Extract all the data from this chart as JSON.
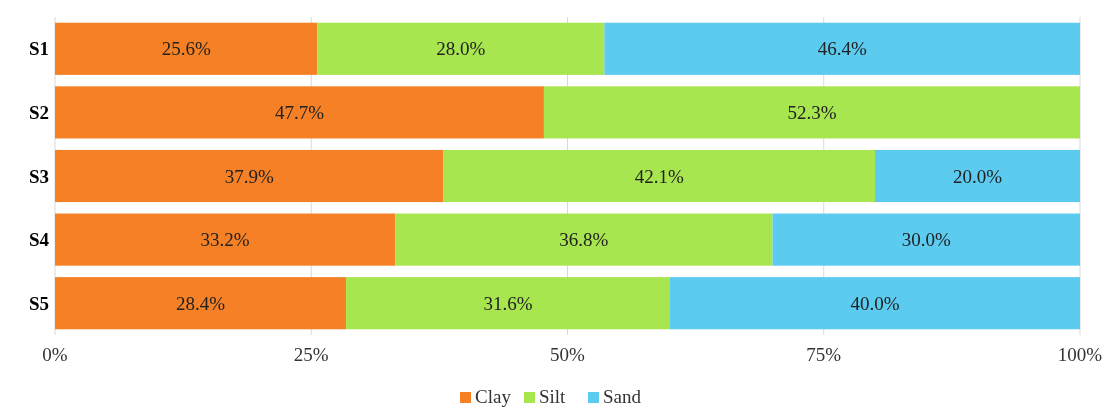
{
  "chart_data": {
    "type": "bar",
    "orientation": "horizontal",
    "stacked": true,
    "categories": [
      "S1",
      "S2",
      "S3",
      "S4",
      "S5"
    ],
    "series": [
      {
        "name": "Clay",
        "color": "#f58025",
        "values": [
          25.6,
          47.7,
          37.9,
          33.2,
          28.4
        ],
        "value_labels": [
          "25.6%",
          "47.7%",
          "37.9%",
          "33.2%",
          "28.4%"
        ]
      },
      {
        "name": "Silt",
        "color": "#a8e64f",
        "values": [
          28.0,
          52.3,
          42.1,
          36.8,
          31.6
        ],
        "value_labels": [
          "28.0%",
          "52.3%",
          "42.1%",
          "36.8%",
          "31.6%"
        ]
      },
      {
        "name": "Sand",
        "color": "#5ccbf0",
        "values": [
          46.4,
          0,
          20.0,
          30.0,
          40.0
        ],
        "value_labels": [
          "46.4%",
          null,
          "20.0%",
          "30.0%",
          "40.0%"
        ]
      }
    ],
    "xlim": [
      0,
      100
    ],
    "xticks": [
      {
        "value": 0,
        "label": "0%"
      },
      {
        "value": 25,
        "label": "25%"
      },
      {
        "value": 50,
        "label": "50%"
      },
      {
        "value": 75,
        "label": "75%"
      },
      {
        "value": 100,
        "label": "100%"
      }
    ],
    "grid": "x",
    "legend": "bottom"
  }
}
